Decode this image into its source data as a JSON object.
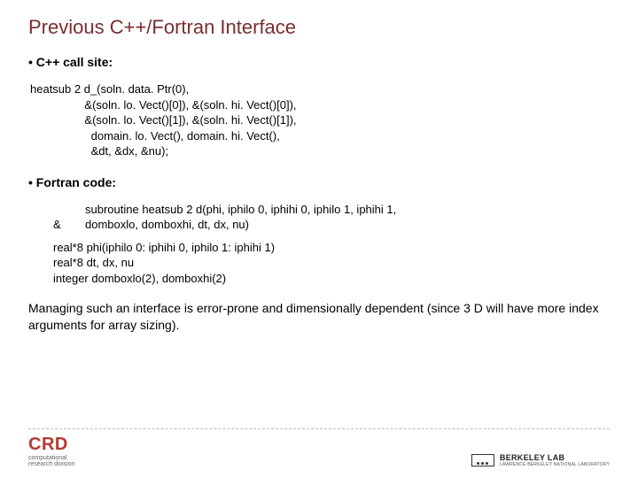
{
  "title": "Previous C++/Fortran Interface",
  "bullet1": "• C++ call site:",
  "code": {
    "l1": "heatsub 2 d_(soln. data. Ptr(0),",
    "l2": "                 &(soln. lo. Vect()[0]), &(soln. hi. Vect()[0]),",
    "l3": "                 &(soln. lo. Vect()[1]), &(soln. hi. Vect()[1]),",
    "l4": "                   domain. lo. Vect(), domain. hi. Vect(),",
    "l5": "                   &dt, &dx, &nu);"
  },
  "bullet2": "• Fortran code:",
  "fortran": {
    "amp": "&",
    "sub1": "subroutine heatsub 2 d(phi, iphilo 0, iphihi 0, iphilo 1, iphihi 1,",
    "sub2": "                domboxlo, domboxhi, dt, dx, nu)",
    "d1": "real*8  phi(iphilo 0: iphihi 0, iphilo 1: iphihi 1)",
    "d2": "real*8 dt, dx, nu",
    "d3": "integer domboxlo(2), domboxhi(2)"
  },
  "body": "Managing such an interface is error-prone and dimensionally dependent (since 3 D will have more index arguments for array sizing).",
  "footer": {
    "crd": "CRD",
    "crd_sub1": "computational",
    "crd_sub2": "research division",
    "lbl": "BERKELEY LAB",
    "lbl_sub": "LAWRENCE BERKELEY NATIONAL LABORATORY"
  },
  "colors": {
    "title": "#7a2e2e",
    "text": "#000000",
    "crd": "#b43a2f"
  }
}
